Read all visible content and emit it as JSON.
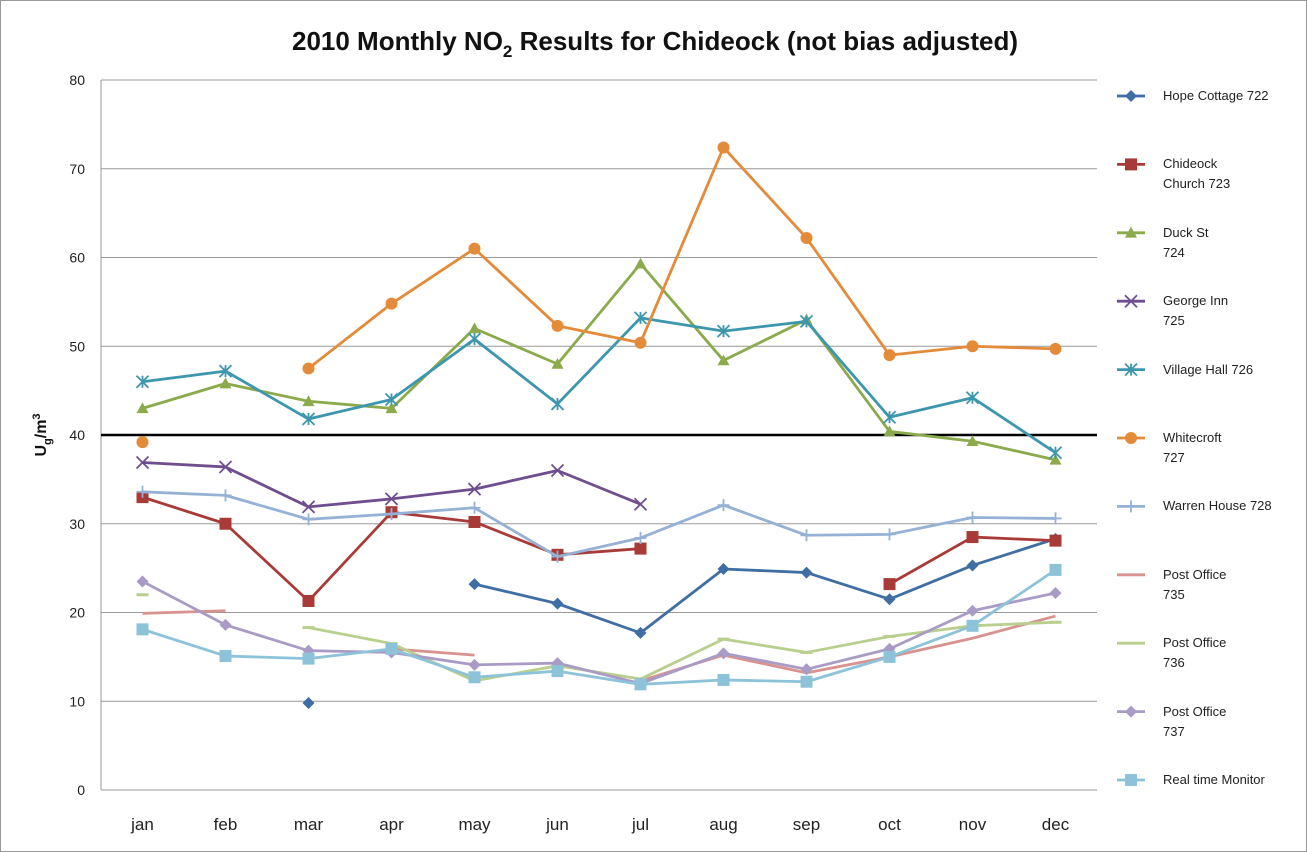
{
  "chart_data": {
    "type": "line",
    "title": [
      "2010 Monthly NO",
      "2",
      " Results for Chideock (not bias adjusted)"
    ],
    "y_label": [
      "U",
      "g",
      "/m",
      "3"
    ],
    "categories": [
      "jan",
      "feb",
      "mar",
      "apr",
      "may",
      "jun",
      "jul",
      "aug",
      "sep",
      "oct",
      "nov",
      "dec"
    ],
    "ylim": [
      0,
      80
    ],
    "yticks": [
      0,
      10,
      20,
      30,
      40,
      50,
      60,
      70,
      80
    ],
    "grid": true,
    "reference_line": 40,
    "series": [
      {
        "name": "Hope Cottage 722",
        "color": "#3F6EA5",
        "marker": "diamond",
        "values": [
          null,
          null,
          9.8,
          null,
          23.2,
          21,
          17.7,
          24.9,
          24.5,
          21.5,
          25.3,
          28.3
        ]
      },
      {
        "name": "Chideock Church 723",
        "color": "#A83B37",
        "marker": "square",
        "values": [
          33,
          30,
          21.3,
          31.3,
          30.2,
          26.5,
          27.2,
          null,
          null,
          23.2,
          28.5,
          28.1
        ]
      },
      {
        "name": "Duck St 724",
        "color": "#8BAA4B",
        "marker": "triangle",
        "values": [
          43,
          45.8,
          43.8,
          43,
          52,
          48,
          59.3,
          48.4,
          53,
          40.4,
          39.3,
          37.2
        ]
      },
      {
        "name": "George Inn 725",
        "color": "#6F4E8F",
        "marker": "x",
        "values": [
          36.9,
          36.4,
          31.9,
          32.8,
          33.9,
          36,
          32.2,
          null,
          null,
          null,
          null,
          null
        ]
      },
      {
        "name": "Village Hall 726",
        "color": "#3C97AE",
        "marker": "star",
        "values": [
          46,
          47.2,
          41.8,
          44,
          50.8,
          43.5,
          53.2,
          51.7,
          52.8,
          42,
          44.2,
          38
        ]
      },
      {
        "name": "Whitecroft 727",
        "color": "#E48B3A",
        "marker": "circle",
        "values": [
          39.2,
          null,
          47.5,
          54.8,
          61,
          52.3,
          50.4,
          72.4,
          62.2,
          49,
          50,
          49.7
        ]
      },
      {
        "name": "Warren House 728",
        "color": "#95B1D6",
        "marker": "plus",
        "values": [
          33.6,
          33.2,
          30.5,
          31.1,
          31.8,
          26.3,
          28.4,
          32.1,
          28.7,
          28.8,
          30.7,
          30.6
        ]
      },
      {
        "name": "Post Office 735",
        "color": "#D8928F",
        "marker": "none",
        "values": [
          19.9,
          20.2,
          null,
          15.9,
          15.2,
          null,
          12.3,
          15.2,
          13.2,
          15,
          17.1,
          19.6
        ]
      },
      {
        "name": "Post Office 736",
        "color": "#B9CF8D",
        "marker": "dash",
        "values": [
          22,
          null,
          18.3,
          16.5,
          12.3,
          14,
          12.5,
          17,
          15.5,
          17.3,
          18.5,
          18.9
        ]
      },
      {
        "name": "Post Office 737",
        "color": "#A99BC6",
        "marker": "diamond",
        "values": [
          23.5,
          18.6,
          15.7,
          15.5,
          14.1,
          14.3,
          12,
          15.4,
          13.6,
          15.9,
          20.2,
          22.2
        ]
      },
      {
        "name": "Real time Monitor",
        "color": "#8CC3D8",
        "marker": "square",
        "values": [
          18.1,
          15.1,
          14.8,
          15.9,
          12.7,
          13.4,
          11.9,
          12.4,
          12.2,
          15,
          18.5,
          24.8
        ]
      }
    ]
  }
}
